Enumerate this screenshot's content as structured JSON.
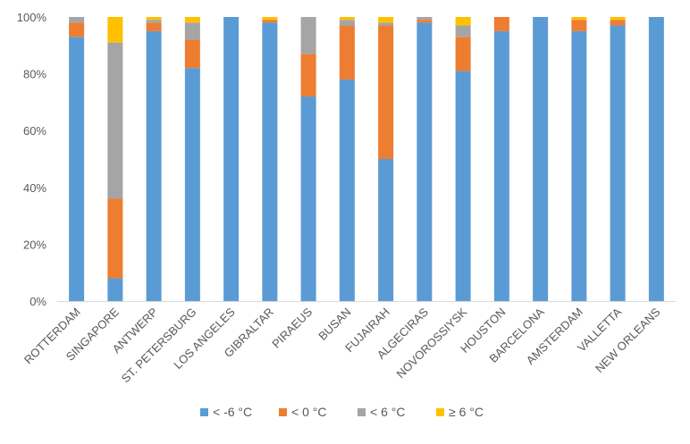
{
  "chart_data": {
    "type": "bar",
    "stacked": "percent",
    "title": "",
    "xlabel": "",
    "ylabel": "",
    "ylim": [
      0,
      100
    ],
    "yticks": [
      "0%",
      "20%",
      "40%",
      "60%",
      "80%",
      "100%"
    ],
    "grid": false,
    "legend_position": "bottom",
    "categories": [
      "ROTTERDAM",
      "SINGAPORE",
      "ANTWERP",
      "ST. PETERSBURG",
      "LOS ANGELES",
      "GIBRALTAR",
      "PIRAEUS",
      "BUSAN",
      "FUJAIRAH",
      "ALGECIRAS",
      "NOVOROSSIYSK",
      "HOUSTON",
      "BARCELONA",
      "AMSTERDAM",
      "VALLETTA",
      "NEW ORLEANS"
    ],
    "series": [
      {
        "name": "< -6 °C",
        "color": "#5B9BD5",
        "values": [
          93,
          8,
          95,
          82,
          100,
          98,
          72,
          78,
          50,
          98,
          81,
          95,
          100,
          95,
          97,
          100
        ]
      },
      {
        "name": "< 0 °C",
        "color": "#ED7D31",
        "values": [
          5,
          28,
          3,
          10,
          0,
          1,
          15,
          19,
          47,
          1,
          12,
          5,
          0,
          4,
          2,
          0
        ]
      },
      {
        "name": "< 6 °C",
        "color": "#A5A5A5",
        "values": [
          2,
          55,
          1,
          6,
          0,
          0,
          13,
          2,
          1,
          1,
          4,
          0,
          0,
          0,
          0,
          0
        ]
      },
      {
        "name": "≥ 6 °C",
        "color": "#FFC000",
        "values": [
          0,
          9,
          1,
          2,
          0,
          1,
          0,
          1,
          2,
          0,
          3,
          0,
          0,
          1,
          1,
          0
        ]
      }
    ]
  }
}
